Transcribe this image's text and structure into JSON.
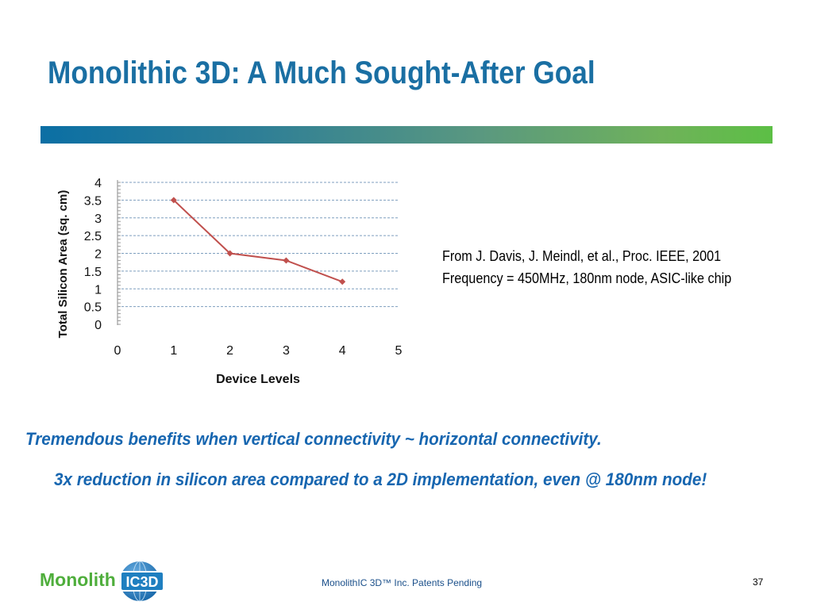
{
  "slide": {
    "title": "Monolithic 3D: A Much Sought-After Goal",
    "source_line_1": "From J. Davis, J. Meindl, et al., Proc. IEEE, 2001",
    "source_line_2": "Frequency = 450MHz, 180nm node, ASIC-like chip",
    "benefit_1": "Tremendous benefits when vertical connectivity ~ horizontal connectivity.",
    "benefit_2": "3x reduction in silicon area compared to a 2D implementation, even @ 180nm node!",
    "footer": "MonolithIC 3D™ Inc. Patents Pending",
    "page_number": "37",
    "logo": {
      "text": "Monolith",
      "badge": "IC3D",
      "icon": "globe-icon"
    }
  },
  "colors": {
    "title": "#1a6fa3",
    "benefit": "#1766b0",
    "series": "#c0504d",
    "logo_green": "#4fae3c",
    "logo_blue": "#1f7fc0"
  },
  "chart_data": {
    "type": "line",
    "xlabel": "Device Levels",
    "ylabel": "Total Silicon Area (sq. cm)",
    "xlim": [
      0,
      5
    ],
    "ylim": [
      0,
      4
    ],
    "x_ticks": [
      "0",
      "1",
      "2",
      "3",
      "4",
      "5"
    ],
    "y_ticks": [
      "0",
      "0.5",
      "1",
      "1.5",
      "2",
      "2.5",
      "3",
      "3.5",
      "4"
    ],
    "grid": true,
    "series": [
      {
        "x": [
          1,
          2,
          3,
          4
        ],
        "y": [
          3.5,
          2.0,
          1.8,
          1.2
        ]
      }
    ]
  }
}
